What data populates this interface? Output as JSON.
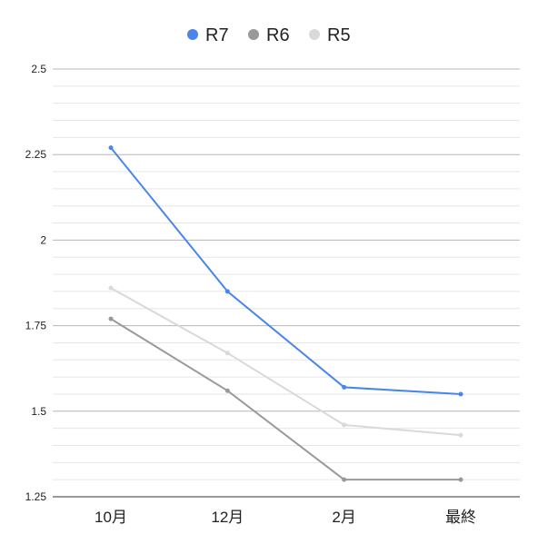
{
  "chart_data": {
    "type": "line",
    "categories": [
      "10月",
      "12月",
      "2月",
      "最終"
    ],
    "series": [
      {
        "name": "R7",
        "color": "#4a86e8",
        "values": [
          2.27,
          1.85,
          1.57,
          1.55
        ]
      },
      {
        "name": "R6",
        "color": "#999999",
        "values": [
          1.77,
          1.56,
          1.3,
          1.3
        ]
      },
      {
        "name": "R5",
        "color": "#d9d9d9",
        "values": [
          1.86,
          1.67,
          1.46,
          1.43
        ]
      }
    ],
    "ylim": [
      1.25,
      2.5
    ],
    "yticks": [
      1.25,
      1.5,
      1.75,
      2,
      2.25,
      2.5
    ],
    "ytick_labels": [
      "1.25",
      "1.5",
      "1.75",
      "2",
      "2.25",
      "2.5"
    ],
    "minor_gridlines": true,
    "legend_position": "top-center",
    "title": "",
    "xlabel": "",
    "ylabel": ""
  }
}
